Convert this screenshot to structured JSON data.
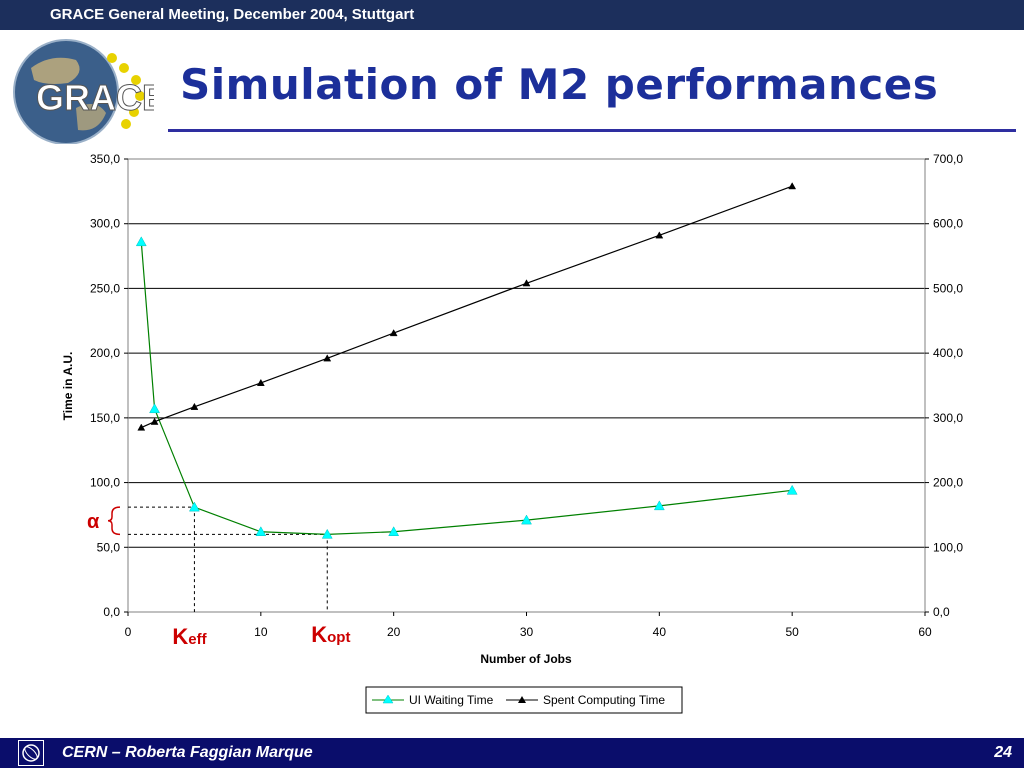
{
  "header": {
    "title": "GRACE General Meeting, December 2004, Stuttgart"
  },
  "slide": {
    "title": "Simulation of M2 performances",
    "logo_text": "GRACE"
  },
  "footer": {
    "text": "CERN – Roberta Faggian Marque",
    "page": "24"
  },
  "colors": {
    "header_bg": "#1c2f5c",
    "footer_bg": "#0a0d6b",
    "title": "#1c2f9a",
    "ui_series": "#008000",
    "ui_marker": "#00ffff",
    "spent_series": "#000000",
    "annotation": "#cc0000"
  },
  "chart_data": {
    "type": "line",
    "xlabel": "Number of Jobs",
    "ylabel": "Time in A.U.",
    "xlim": [
      0,
      60
    ],
    "ylim": [
      0,
      350
    ],
    "y2lim": [
      0,
      700
    ],
    "xticks": [
      "0",
      "10",
      "20",
      "30",
      "40",
      "50",
      "60"
    ],
    "yticks": [
      "0,0",
      "50,0",
      "100,0",
      "150,0",
      "200,0",
      "250,0",
      "300,0",
      "350,0"
    ],
    "y2ticks": [
      "0,0",
      "100,0",
      "200,0",
      "300,0",
      "400,0",
      "500,0",
      "600,0",
      "700,0"
    ],
    "grid": "horizontal",
    "legend": "bottom",
    "series": [
      {
        "name": "UI Waiting Time",
        "axis": "left",
        "x": [
          1,
          2,
          5,
          10,
          15,
          20,
          30,
          40,
          50
        ],
        "values": [
          286,
          157,
          81,
          62,
          60,
          62,
          71,
          82,
          94
        ]
      },
      {
        "name": "Spent Computing Time",
        "axis": "right",
        "x": [
          1,
          2,
          5,
          10,
          15,
          20,
          30,
          40,
          50
        ],
        "values": [
          285,
          294,
          317,
          354,
          392,
          431,
          508,
          582,
          658
        ]
      }
    ],
    "annotations": {
      "alpha": "α",
      "keff_main": "K",
      "keff_sub": "eff",
      "kopt_main": "K",
      "kopt_sub": "opt"
    }
  }
}
